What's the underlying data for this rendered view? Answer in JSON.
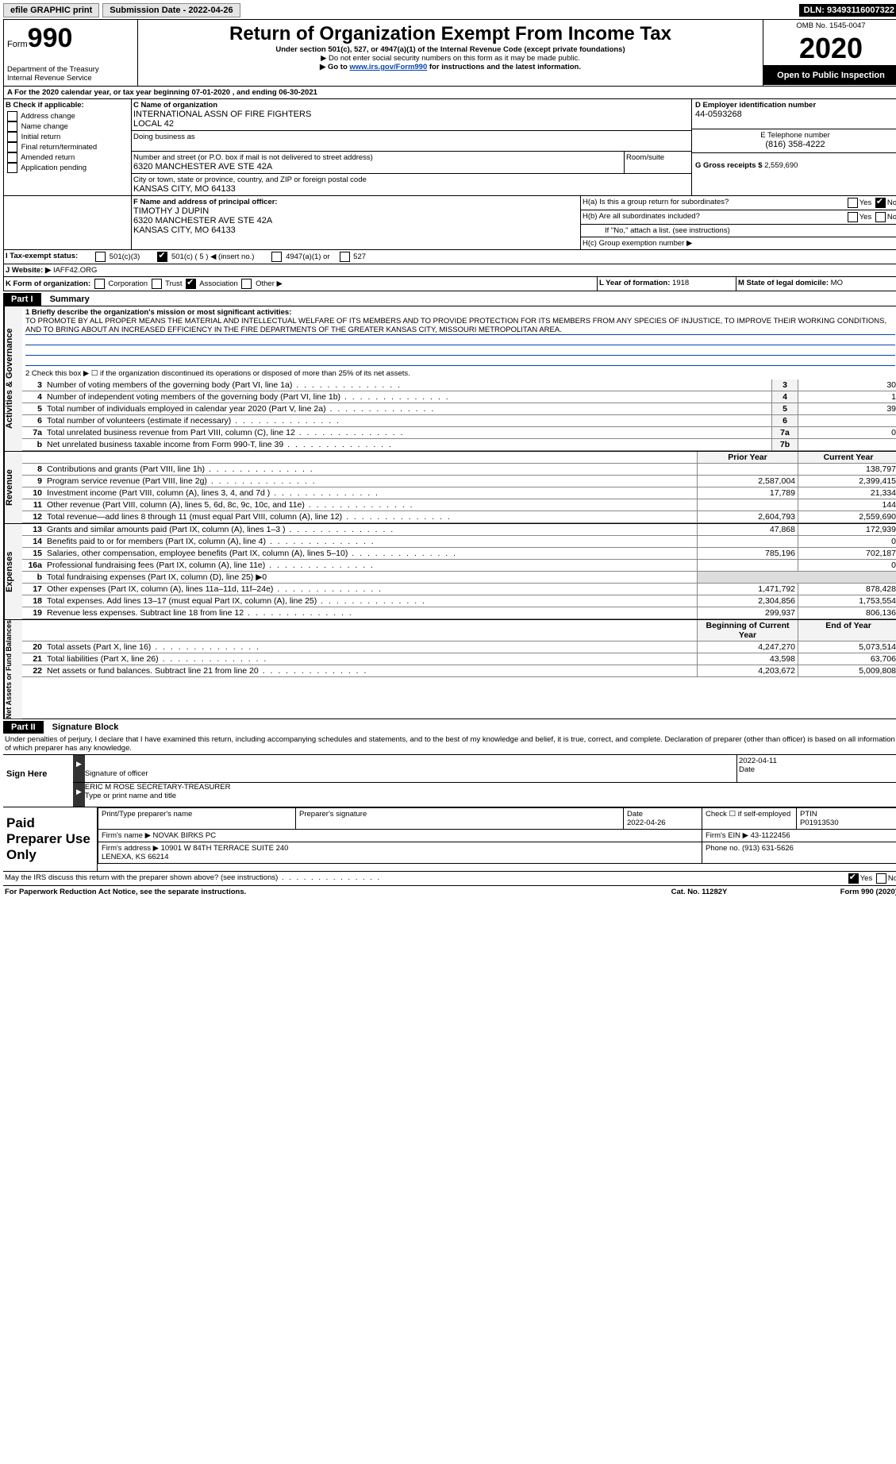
{
  "topbar": {
    "efile": "efile GRAPHIC print",
    "submission_label": "Submission Date - 2022-04-26",
    "dln_label": "DLN: 93493116007322"
  },
  "header": {
    "form_word": "Form",
    "form_num": "990",
    "title": "Return of Organization Exempt From Income Tax",
    "subtitle": "Under section 501(c), 527, or 4947(a)(1) of the Internal Revenue Code (except private foundations)",
    "warn1": "▶ Do not enter social security numbers on this form as it may be made public.",
    "warn2_pre": "▶ Go to ",
    "warn2_link": "www.irs.gov/Form990",
    "warn2_post": " for instructions and the latest information.",
    "dept": "Department of the Treasury\nInternal Revenue Service",
    "omb": "OMB No. 1545-0047",
    "year": "2020",
    "open": "Open to Public Inspection"
  },
  "A": {
    "line": "A For the 2020 calendar year, or tax year beginning 07-01-2020   , and ending 06-30-2021"
  },
  "B": {
    "label": "B Check if applicable:",
    "items": [
      "Address change",
      "Name change",
      "Initial return",
      "Final return/terminated",
      "Amended return",
      "Application pending"
    ]
  },
  "C": {
    "name_label": "C Name of organization",
    "name": "INTERNATIONAL ASSN OF FIRE FIGHTERS\nLOCAL 42",
    "dba_label": "Doing business as",
    "addr_label": "Number and street (or P.O. box if mail is not delivered to street address)",
    "addr": "6320 MANCHESTER AVE STE 42A",
    "room_label": "Room/suite",
    "city_label": "City or town, state or province, country, and ZIP or foreign postal code",
    "city": "KANSAS CITY, MO  64133"
  },
  "D": {
    "label": "D Employer identification number",
    "val": "44-0593268"
  },
  "E": {
    "label": "E Telephone number",
    "val": "(816) 358-4222"
  },
  "G": {
    "label": "G Gross receipts $",
    "val": "2,559,690"
  },
  "F": {
    "label": "F  Name and address of principal officer:",
    "name": "TIMOTHY J DUPIN",
    "addr1": "6320 MANCHESTER AVE STE 42A",
    "addr2": "KANSAS CITY, MO  64133"
  },
  "H": {
    "a": "H(a)  Is this a group return for subordinates?",
    "b": "H(b)  Are all subordinates included?",
    "b_note": "If \"No,\" attach a list. (see instructions)",
    "c": "H(c)  Group exemption number ▶",
    "yes": "Yes",
    "no": "No"
  },
  "I": {
    "label": "I   Tax-exempt status:",
    "c3": "501(c)(3)",
    "c": "501(c) ( 5 ) ◀ (insert no.)",
    "a1": "4947(a)(1) or",
    "527": "527"
  },
  "J": {
    "label": "J   Website: ▶",
    "val": " IAFF42.ORG"
  },
  "K": {
    "label": "K Form of organization:",
    "corp": "Corporation",
    "trust": "Trust",
    "assoc": "Association",
    "other": "Other ▶"
  },
  "L": {
    "label": "L Year of formation: ",
    "val": "1918"
  },
  "M": {
    "label": "M State of legal domicile: ",
    "val": "MO"
  },
  "part1": {
    "label": "Part I",
    "title": "Summary"
  },
  "summary": {
    "line1_label": "1  Briefly describe the organization's mission or most significant activities:",
    "mission": "TO PROMOTE BY ALL PROPER MEANS THE MATERIAL AND INTELLECTUAL WELFARE OF ITS MEMBERS AND TO PROVIDE PROTECTION FOR ITS MEMBERS FROM ANY SPECIES OF INJUSTICE, TO IMPROVE THEIR WORKING CONDITIONS, AND TO BRING ABOUT AN INCREASED EFFICIENCY IN THE FIRE DEPARTMENTS OF THE GREATER KANSAS CITY, MISSOURI METROPOLITAN AREA.",
    "line2": "2   Check this box ▶ ☐ if the organization discontinued its operations or disposed of more than 25% of its net assets.",
    "rows_gov": [
      {
        "n": "3",
        "t": "Number of voting members of the governing body (Part VI, line 1a)",
        "box": "3",
        "v": "30"
      },
      {
        "n": "4",
        "t": "Number of independent voting members of the governing body (Part VI, line 1b)",
        "box": "4",
        "v": "1"
      },
      {
        "n": "5",
        "t": "Total number of individuals employed in calendar year 2020 (Part V, line 2a)",
        "box": "5",
        "v": "39"
      },
      {
        "n": "6",
        "t": "Total number of volunteers (estimate if necessary)",
        "box": "6",
        "v": ""
      },
      {
        "n": "7a",
        "t": "Total unrelated business revenue from Part VIII, column (C), line 12",
        "box": "7a",
        "v": "0"
      },
      {
        "n": "b",
        "t": "Net unrelated business taxable income from Form 990-T, line 39",
        "box": "7b",
        "v": ""
      }
    ],
    "hdr_prior": "Prior Year",
    "hdr_curr": "Current Year",
    "rev": [
      {
        "n": "8",
        "t": "Contributions and grants (Part VIII, line 1h)",
        "p": "",
        "c": "138,797"
      },
      {
        "n": "9",
        "t": "Program service revenue (Part VIII, line 2g)",
        "p": "2,587,004",
        "c": "2,399,415"
      },
      {
        "n": "10",
        "t": "Investment income (Part VIII, column (A), lines 3, 4, and 7d )",
        "p": "17,789",
        "c": "21,334"
      },
      {
        "n": "11",
        "t": "Other revenue (Part VIII, column (A), lines 5, 6d, 8c, 9c, 10c, and 11e)",
        "p": "",
        "c": "144"
      },
      {
        "n": "12",
        "t": "Total revenue—add lines 8 through 11 (must equal Part VIII, column (A), line 12)",
        "p": "2,604,793",
        "c": "2,559,690"
      }
    ],
    "exp": [
      {
        "n": "13",
        "t": "Grants and similar amounts paid (Part IX, column (A), lines 1–3 )",
        "p": "47,868",
        "c": "172,939"
      },
      {
        "n": "14",
        "t": "Benefits paid to or for members (Part IX, column (A), line 4)",
        "p": "",
        "c": "0"
      },
      {
        "n": "15",
        "t": "Salaries, other compensation, employee benefits (Part IX, column (A), lines 5–10)",
        "p": "785,196",
        "c": "702,187"
      },
      {
        "n": "16a",
        "t": "Professional fundraising fees (Part IX, column (A), line 11e)",
        "p": "",
        "c": "0"
      },
      {
        "n": "b",
        "t": "Total fundraising expenses (Part IX, column (D), line 25) ▶0",
        "p": "—",
        "c": "—"
      },
      {
        "n": "17",
        "t": "Other expenses (Part IX, column (A), lines 11a–11d, 11f–24e)",
        "p": "1,471,792",
        "c": "878,428"
      },
      {
        "n": "18",
        "t": "Total expenses. Add lines 13–17 (must equal Part IX, column (A), line 25)",
        "p": "2,304,856",
        "c": "1,753,554"
      },
      {
        "n": "19",
        "t": "Revenue less expenses. Subtract line 18 from line 12",
        "p": "299,937",
        "c": "806,136"
      }
    ],
    "hdr_beg": "Beginning of Current Year",
    "hdr_end": "End of Year",
    "net": [
      {
        "n": "20",
        "t": "Total assets (Part X, line 16)",
        "p": "4,247,270",
        "c": "5,073,514"
      },
      {
        "n": "21",
        "t": "Total liabilities (Part X, line 26)",
        "p": "43,598",
        "c": "63,706"
      },
      {
        "n": "22",
        "t": "Net assets or fund balances. Subtract line 21 from line 20",
        "p": "4,203,672",
        "c": "5,009,808"
      }
    ],
    "vlabels": {
      "gov": "Activities & Governance",
      "rev": "Revenue",
      "exp": "Expenses",
      "net": "Net Assets or Fund Balances"
    }
  },
  "part2": {
    "label": "Part II",
    "title": "Signature Block"
  },
  "sig": {
    "decl": "Under penalties of perjury, I declare that I have examined this return, including accompanying schedules and statements, and to the best of my knowledge and belief, it is true, correct, and complete. Declaration of preparer (other than officer) is based on all information of which preparer has any knowledge.",
    "sign_here": "Sign Here",
    "sig_officer": "Signature of officer",
    "date": "Date",
    "sig_date": "2022-04-11",
    "name_title": "ERIC M ROSE SECRETARY-TREASURER",
    "type_name": "Type or print name and title",
    "paid": "Paid Preparer Use Only",
    "prep_name_lbl": "Print/Type preparer's name",
    "prep_sig_lbl": "Preparer's signature",
    "prep_date_lbl": "Date",
    "prep_date": "2022-04-26",
    "self_emp": "Check ☐ if self-employed",
    "ptin_lbl": "PTIN",
    "ptin": "P01913530",
    "firm_name_lbl": "Firm's name    ▶",
    "firm_name": "NOVAK BIRKS PC",
    "firm_ein_lbl": "Firm's EIN ▶",
    "firm_ein": "43-1122456",
    "firm_addr_lbl": "Firm's address ▶",
    "firm_addr": "10901 W 84TH TERRACE SUITE 240\nLENEXA, KS  66214",
    "phone_lbl": "Phone no.",
    "phone": "(913) 631-5626",
    "discuss": "May the IRS discuss this return with the preparer shown above? (see instructions)",
    "yes": "Yes",
    "no": "No"
  },
  "footer": {
    "left": "For Paperwork Reduction Act Notice, see the separate instructions.",
    "mid": "Cat. No. 11282Y",
    "right": "Form 990 (2020)"
  }
}
